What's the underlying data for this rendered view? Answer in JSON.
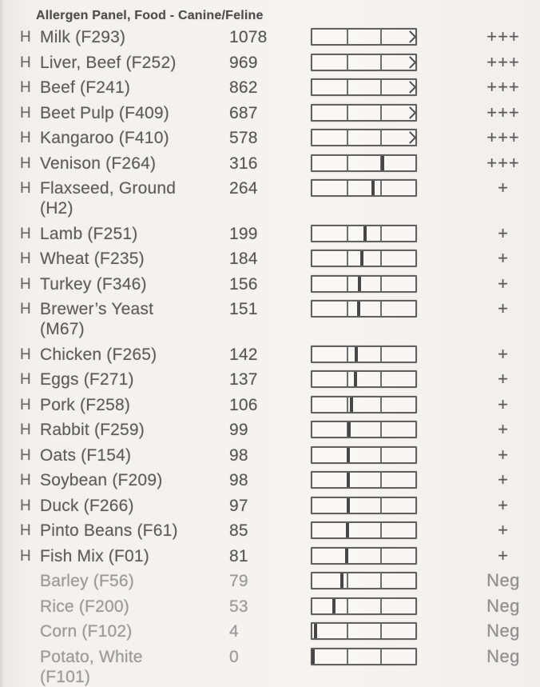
{
  "header": {
    "title": "Allergen Panel, Food - Canine/Feline"
  },
  "colors": {
    "paper": "#f3f1ed",
    "ink": "#5c5c5c",
    "ink_muted": "#9b9b9b",
    "bar_outline": "#616161",
    "bar_tick": "#474747"
  },
  "ratings_seen": {
    "strong_positive": "+++",
    "positive": "+",
    "negative": "Neg"
  },
  "high_flag_symbol": "H",
  "rows": [
    {
      "flag": "H",
      "name": "Milk (F293)",
      "name_line2": "",
      "value": "1078",
      "rating": "+++",
      "muted": false,
      "bar": {
        "off_scale": true,
        "tick_pct": 100
      }
    },
    {
      "flag": "H",
      "name": "Liver, Beef (F252)",
      "name_line2": "",
      "value": "969",
      "rating": "+++",
      "muted": false,
      "bar": {
        "off_scale": true,
        "tick_pct": 100
      }
    },
    {
      "flag": "H",
      "name": "Beef (F241)",
      "name_line2": "",
      "value": "862",
      "rating": "+++",
      "muted": false,
      "bar": {
        "off_scale": true,
        "tick_pct": 100
      }
    },
    {
      "flag": "H",
      "name": "Beet Pulp (F409)",
      "name_line2": "",
      "value": "687",
      "rating": "+++",
      "muted": false,
      "bar": {
        "off_scale": true,
        "tick_pct": 100
      }
    },
    {
      "flag": "H",
      "name": "Kangaroo (F410)",
      "name_line2": "",
      "value": "578",
      "rating": "+++",
      "muted": false,
      "bar": {
        "off_scale": true,
        "tick_pct": 100
      }
    },
    {
      "flag": "H",
      "name": "Venison (F264)",
      "name_line2": "",
      "value": "316",
      "rating": "+++",
      "muted": false,
      "bar": {
        "off_scale": false,
        "tick_pct": 68
      }
    },
    {
      "flag": "H",
      "name": "Flaxseed, Ground",
      "name_line2": "(H2)",
      "value": "264",
      "rating": "+",
      "muted": false,
      "bar": {
        "off_scale": false,
        "tick_pct": 59
      }
    },
    {
      "flag": "H",
      "name": "Lamb (F251)",
      "name_line2": "",
      "value": "199",
      "rating": "+",
      "muted": false,
      "bar": {
        "off_scale": false,
        "tick_pct": 51
      }
    },
    {
      "flag": "H",
      "name": "Wheat (F235)",
      "name_line2": "",
      "value": "184",
      "rating": "+",
      "muted": false,
      "bar": {
        "off_scale": false,
        "tick_pct": 48
      }
    },
    {
      "flag": "H",
      "name": "Turkey (F346)",
      "name_line2": "",
      "value": "156",
      "rating": "+",
      "muted": false,
      "bar": {
        "off_scale": false,
        "tick_pct": 46
      }
    },
    {
      "flag": "H",
      "name": "Brewer’s Yeast",
      "name_line2": "(M67)",
      "value": "151",
      "rating": "+",
      "muted": false,
      "bar": {
        "off_scale": false,
        "tick_pct": 45
      }
    },
    {
      "flag": "H",
      "name": "Chicken (F265)",
      "name_line2": "",
      "value": "142",
      "rating": "+",
      "muted": false,
      "bar": {
        "off_scale": false,
        "tick_pct": 43
      }
    },
    {
      "flag": "H",
      "name": "Eggs (F271)",
      "name_line2": "",
      "value": "137",
      "rating": "+",
      "muted": false,
      "bar": {
        "off_scale": false,
        "tick_pct": 42
      }
    },
    {
      "flag": "H",
      "name": "Pork (F258)",
      "name_line2": "",
      "value": "106",
      "rating": "+",
      "muted": false,
      "bar": {
        "off_scale": false,
        "tick_pct": 38
      }
    },
    {
      "flag": "H",
      "name": "Rabbit (F259)",
      "name_line2": "",
      "value": "99",
      "rating": "+",
      "muted": false,
      "bar": {
        "off_scale": false,
        "tick_pct": 36
      }
    },
    {
      "flag": "H",
      "name": "Oats (F154)",
      "name_line2": "",
      "value": "98",
      "rating": "+",
      "muted": false,
      "bar": {
        "off_scale": false,
        "tick_pct": 35
      }
    },
    {
      "flag": "H",
      "name": "Soybean (F209)",
      "name_line2": "",
      "value": "98",
      "rating": "+",
      "muted": false,
      "bar": {
        "off_scale": false,
        "tick_pct": 35
      }
    },
    {
      "flag": "H",
      "name": "Duck (F266)",
      "name_line2": "",
      "value": "97",
      "rating": "+",
      "muted": false,
      "bar": {
        "off_scale": false,
        "tick_pct": 35
      }
    },
    {
      "flag": "H",
      "name": "Pinto Beans (F61)",
      "name_line2": "",
      "value": "85",
      "rating": "+",
      "muted": false,
      "bar": {
        "off_scale": false,
        "tick_pct": 34
      }
    },
    {
      "flag": "H",
      "name": "Fish Mix (F01)",
      "name_line2": "",
      "value": "81",
      "rating": "+",
      "muted": false,
      "bar": {
        "off_scale": false,
        "tick_pct": 33
      }
    },
    {
      "flag": "",
      "name": "Barley (F56)",
      "name_line2": "",
      "value": "79",
      "rating": "Neg",
      "muted": true,
      "bar": {
        "off_scale": false,
        "tick_pct": 29
      }
    },
    {
      "flag": "",
      "name": "Rice (F200)",
      "name_line2": "",
      "value": "53",
      "rating": "Neg",
      "muted": true,
      "bar": {
        "off_scale": false,
        "tick_pct": 21
      }
    },
    {
      "flag": "",
      "name": "Corn (F102)",
      "name_line2": "",
      "value": "4",
      "rating": "Neg",
      "muted": true,
      "bar": {
        "off_scale": false,
        "tick_pct": 3
      }
    },
    {
      "flag": "",
      "name": "Potato, White",
      "name_line2": "(F101)",
      "value": "0",
      "rating": "Neg",
      "muted": true,
      "bar": {
        "off_scale": false,
        "tick_pct": 1
      }
    }
  ]
}
